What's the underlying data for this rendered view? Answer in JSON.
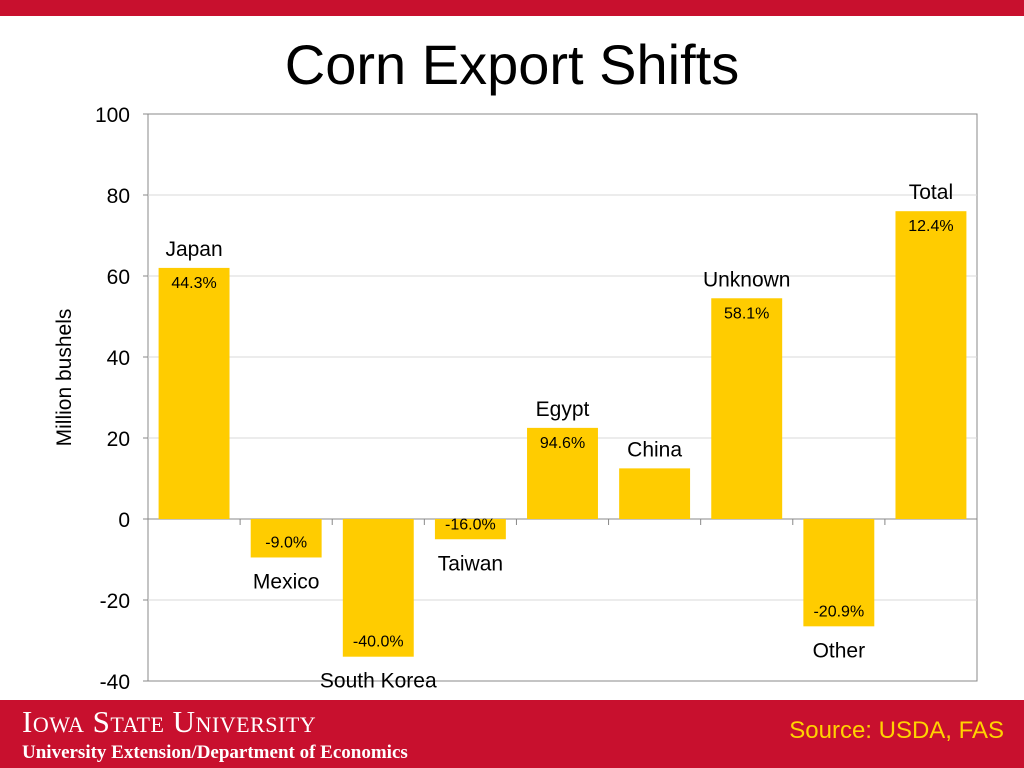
{
  "chart_data": {
    "type": "bar",
    "title": "Corn Export Shifts",
    "ylabel": "Million bushels",
    "xlabel": "",
    "ylim": [
      -40,
      100
    ],
    "yticks": [
      100,
      80,
      60,
      40,
      20,
      0,
      -20,
      -40
    ],
    "grid": true,
    "categories": [
      "Japan",
      "Mexico",
      "South Korea",
      "Taiwan",
      "Egypt",
      "China",
      "Unknown",
      "Other",
      "Total"
    ],
    "values": [
      62,
      -9.5,
      -34,
      -5,
      22.5,
      12.5,
      54.5,
      -26.5,
      76
    ],
    "data_labels": [
      "44.3%",
      "-9.0%",
      "-40.0%",
      "-16.0%",
      "94.6%",
      "",
      "58.1%",
      "-20.9%",
      "12.4%"
    ],
    "bar_color": "#ffcc00"
  },
  "footer": {
    "university": "Iowa State University",
    "department": "University Extension/Department of Economics",
    "source": "Source: USDA, FAS"
  },
  "colors": {
    "brand_red": "#c8102e",
    "source_text": "#ffd200"
  }
}
